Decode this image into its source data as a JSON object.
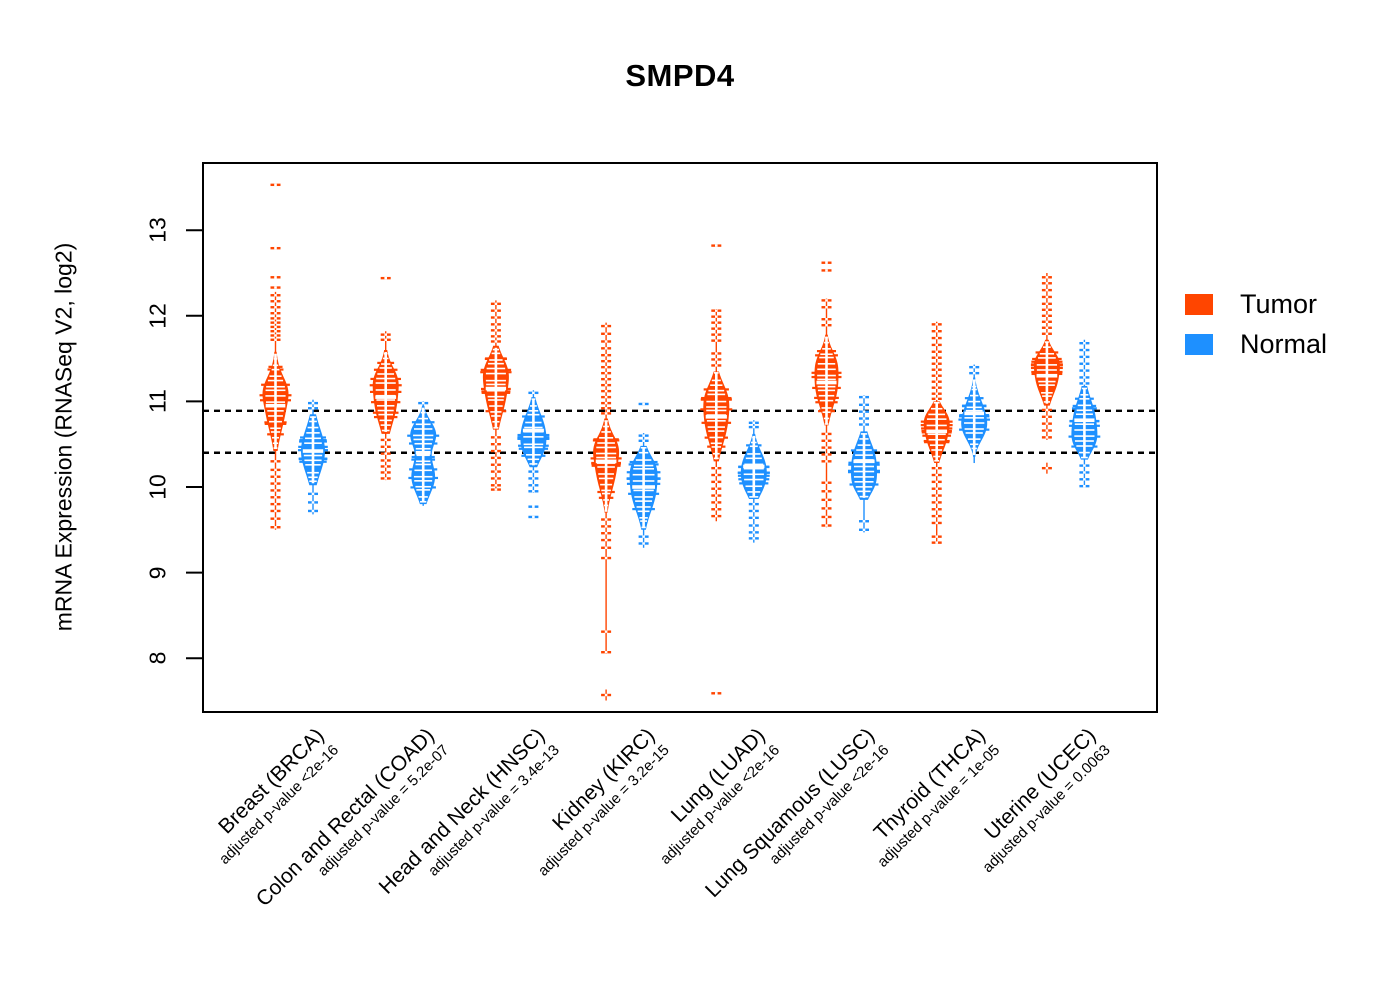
{
  "title": "SMPD4",
  "y_axis": {
    "label": "mRNA Expression (RNASeq V2, log2)",
    "ticks": [
      8,
      9,
      10,
      11,
      12,
      13
    ]
  },
  "legend": {
    "items": [
      {
        "label": "Tumor",
        "color": "#FF4500"
      },
      {
        "label": "Normal",
        "color": "#1E90FF"
      }
    ]
  },
  "chart_data": {
    "type": "violin",
    "variant": "beanplot-tumor-vs-normal",
    "title": "SMPD4",
    "ylabel": "mRNA Expression (RNASeq V2, log2)",
    "ylim": [
      7.4,
      13.8
    ],
    "yticks": [
      8,
      9,
      10,
      11,
      12,
      13
    ],
    "grid": false,
    "legend_position": "right",
    "reference_lines": [
      10.89,
      10.4
    ],
    "series": [
      {
        "name": "Tumor",
        "color": "#FF4500"
      },
      {
        "name": "Normal",
        "color": "#1E90FF"
      }
    ],
    "groups": [
      {
        "label": "Breast (BRCA)",
        "pvalue": "adjusted p-value <2e-16",
        "tumor": {
          "center": 10.95,
          "lobes": [
            [
              10.95,
              0.3,
              1
            ],
            [
              11.15,
              0.14,
              0.45
            ]
          ],
          "bulk": [
            10.42,
            11.58
          ],
          "stem": [
            9.5,
            12.28
          ],
          "w": 13,
          "marks": [
            12.45,
            12.33,
            12.24,
            12.17,
            12.1,
            12.03,
            11.97,
            11.92,
            11.87,
            11.82,
            11.77,
            11.72,
            10.3,
            10.2,
            10.12,
            10.04,
            9.96,
            9.88,
            9.8,
            9.72,
            9.63,
            9.53
          ],
          "isolated": [
            13.53,
            12.79
          ],
          "plus": []
        },
        "normal": {
          "center": 10.42,
          "lobes": [
            [
              10.42,
              0.26,
              1
            ]
          ],
          "bulk": [
            10.02,
            10.85
          ],
          "stem": [
            9.68,
            11.02
          ],
          "w": 12,
          "marks": [
            10.98,
            10.92,
            9.92,
            9.82,
            9.72
          ],
          "isolated": [],
          "plus": []
        }
      },
      {
        "label": "Colon and Rectal (COAD)",
        "pvalue": "adjusted p-value = 5.2e-07",
        "tumor": {
          "center": 11.05,
          "lobes": [
            [
              11.02,
              0.28,
              1
            ],
            [
              11.28,
              0.13,
              0.4
            ]
          ],
          "bulk": [
            10.62,
            11.6
          ],
          "stem": [
            10.08,
            11.82
          ],
          "w": 13,
          "marks": [
            11.78,
            11.72,
            10.55,
            10.47,
            10.39,
            10.31,
            10.24,
            10.17,
            10.1
          ],
          "isolated": [
            12.44
          ],
          "plus": []
        },
        "normal": {
          "center": 10.4,
          "lobes": [
            [
              10.62,
              0.15,
              1
            ],
            [
              10.12,
              0.2,
              0.95
            ]
          ],
          "bulk": [
            9.8,
            10.95
          ],
          "stem": [
            9.78,
            11.0
          ],
          "w": 13,
          "marks": [
            10.98
          ],
          "isolated": [],
          "plus": []
        }
      },
      {
        "label": "Head and Neck (HNSC)",
        "pvalue": "adjusted p-value = 3.4e-13",
        "tumor": {
          "center": 11.15,
          "lobes": [
            [
              11.12,
              0.28,
              1
            ],
            [
              11.38,
              0.15,
              0.5
            ]
          ],
          "bulk": [
            10.67,
            11.65
          ],
          "stem": [
            9.97,
            12.18
          ],
          "w": 13,
          "marks": [
            12.14,
            12.06,
            11.98,
            11.9,
            11.83,
            11.76,
            11.7,
            10.58,
            10.5,
            10.42,
            10.34,
            10.26,
            10.18,
            10.1,
            10.02,
            9.97
          ],
          "isolated": [],
          "plus": []
        },
        "normal": {
          "center": 10.66,
          "lobes": [
            [
              10.68,
              0.2,
              1
            ],
            [
              10.42,
              0.15,
              0.6
            ]
          ],
          "bulk": [
            10.23,
            11.05
          ],
          "stem": [
            9.93,
            11.13
          ],
          "w": 13,
          "marks": [
            11.1,
            10.18,
            10.1,
            10.02,
            9.95
          ],
          "isolated": [
            9.77,
            9.65
          ],
          "plus": []
        }
      },
      {
        "label": "Kidney (KIRC)",
        "pvalue": "adjusted p-value = 3.2e-15",
        "tumor": {
          "center": 10.3,
          "lobes": [
            [
              10.25,
              0.28,
              1
            ],
            [
              10.48,
              0.13,
              0.45
            ]
          ],
          "bulk": [
            9.7,
            10.8
          ],
          "stem": [
            8.05,
            11.92
          ],
          "w": 13,
          "marks": [
            11.88,
            11.79,
            11.7,
            11.62,
            11.54,
            11.47,
            11.4,
            11.33,
            11.26,
            11.19,
            11.12,
            11.05,
            10.98,
            10.92,
            10.86,
            9.62,
            9.54,
            9.46,
            9.38,
            9.29,
            9.17,
            8.31,
            8.07
          ],
          "isolated": [],
          "plus": [
            7.57
          ]
        },
        "normal": {
          "center": 10.0,
          "lobes": [
            [
              9.98,
              0.26,
              1
            ],
            [
              10.25,
              0.13,
              0.4
            ]
          ],
          "bulk": [
            9.5,
            10.48
          ],
          "stem": [
            9.29,
            10.63
          ],
          "w": 14,
          "marks": [
            10.6,
            10.54,
            9.42,
            9.34
          ],
          "isolated": [
            10.97
          ],
          "plus": []
        }
      },
      {
        "label": "Lung (LUAD)",
        "pvalue": "adjusted p-value <2e-16",
        "tumor": {
          "center": 10.82,
          "lobes": [
            [
              10.78,
              0.28,
              1
            ],
            [
              11.08,
              0.16,
              0.45
            ]
          ],
          "bulk": [
            10.3,
            11.35
          ],
          "stem": [
            9.6,
            12.08
          ],
          "w": 13,
          "marks": [
            12.06,
            11.99,
            11.92,
            11.85,
            11.78,
            11.71,
            11.56,
            11.49,
            11.42,
            10.22,
            10.14,
            10.06,
            9.98,
            9.9,
            9.82,
            9.74,
            9.66
          ],
          "isolated": [
            12.82,
            7.59
          ],
          "plus": []
        },
        "normal": {
          "center": 10.24,
          "lobes": [
            [
              10.25,
              0.18,
              1
            ],
            [
              10.0,
              0.14,
              0.55
            ]
          ],
          "bulk": [
            9.86,
            10.62
          ],
          "stem": [
            9.35,
            10.78
          ],
          "w": 13,
          "marks": [
            10.75,
            10.7,
            9.8,
            9.72,
            9.64,
            9.55,
            9.47,
            9.4
          ],
          "isolated": [],
          "plus": []
        }
      },
      {
        "label": "Lung Squamous (LUSC)",
        "pvalue": "adjusted p-value <2e-16",
        "tumor": {
          "center": 11.22,
          "lobes": [
            [
              11.2,
              0.26,
              1
            ],
            [
              11.48,
              0.13,
              0.35
            ]
          ],
          "bulk": [
            10.72,
            11.78
          ],
          "stem": [
            9.53,
            12.2
          ],
          "w": 12,
          "marks": [
            12.18,
            12.1,
            11.96,
            11.89,
            10.62,
            10.54,
            10.46,
            10.38,
            10.3,
            10.05,
            9.95,
            9.85,
            9.75,
            9.65,
            9.55
          ],
          "isolated": [
            12.62,
            12.53
          ],
          "plus": []
        },
        "normal": {
          "center": 10.3,
          "lobes": [
            [
              10.3,
              0.22,
              1
            ],
            [
              10.02,
              0.13,
              0.5
            ]
          ],
          "bulk": [
            9.85,
            10.65
          ],
          "stem": [
            9.47,
            11.07
          ],
          "w": 13,
          "marks": [
            11.05,
            10.96,
            10.88,
            10.8,
            10.73,
            9.6,
            9.5
          ],
          "isolated": [],
          "plus": []
        }
      },
      {
        "label": "Thyroid (THCA)",
        "pvalue": "adjusted p-value = 1e-05",
        "tumor": {
          "center": 10.65,
          "lobes": [
            [
              10.62,
              0.2,
              1
            ],
            [
              10.82,
              0.11,
              0.5
            ]
          ],
          "bulk": [
            10.28,
            11.0
          ],
          "stem": [
            9.35,
            11.93
          ],
          "w": 13,
          "marks": [
            11.9,
            11.82,
            11.74,
            11.66,
            11.58,
            11.51,
            11.44,
            11.37,
            11.3,
            11.23,
            11.16,
            11.09,
            11.03,
            10.22,
            10.14,
            10.06,
            9.98,
            9.9,
            9.82,
            9.74,
            9.66,
            9.58,
            9.42,
            9.35
          ],
          "isolated": [],
          "plus": []
        },
        "normal": {
          "center": 10.86,
          "lobes": [
            [
              10.85,
              0.2,
              1
            ],
            [
              10.65,
              0.14,
              0.6
            ]
          ],
          "bulk": [
            10.35,
            11.28
          ],
          "stem": [
            10.28,
            11.43
          ],
          "w": 13,
          "marks": [
            11.4,
            11.33
          ],
          "isolated": [],
          "plus": []
        }
      },
      {
        "label": "Uterine (UCEC)",
        "pvalue": "adjusted p-value = 0.0063",
        "tumor": {
          "center": 11.3,
          "lobes": [
            [
              11.28,
              0.2,
              1
            ],
            [
              11.5,
              0.11,
              0.5
            ]
          ],
          "bulk": [
            10.95,
            11.72
          ],
          "stem": [
            10.55,
            12.5
          ],
          "w": 13,
          "marks": [
            12.45,
            12.38,
            12.3,
            12.22,
            12.14,
            12.07,
            12.0,
            11.93,
            11.86,
            11.79,
            10.9,
            10.82,
            10.74,
            10.66,
            10.58
          ],
          "isolated": [],
          "plus": [
            10.22
          ]
        },
        "normal": {
          "center": 10.78,
          "lobes": [
            [
              10.78,
              0.24,
              1
            ],
            [
              10.52,
              0.13,
              0.5
            ]
          ],
          "bulk": [
            10.32,
            11.18
          ],
          "stem": [
            10.0,
            11.72
          ],
          "w": 13,
          "marks": [
            11.68,
            11.6,
            11.52,
            11.44,
            11.36,
            11.28,
            11.21,
            10.25,
            10.17,
            10.09,
            10.01
          ],
          "isolated": [],
          "plus": []
        }
      }
    ]
  }
}
